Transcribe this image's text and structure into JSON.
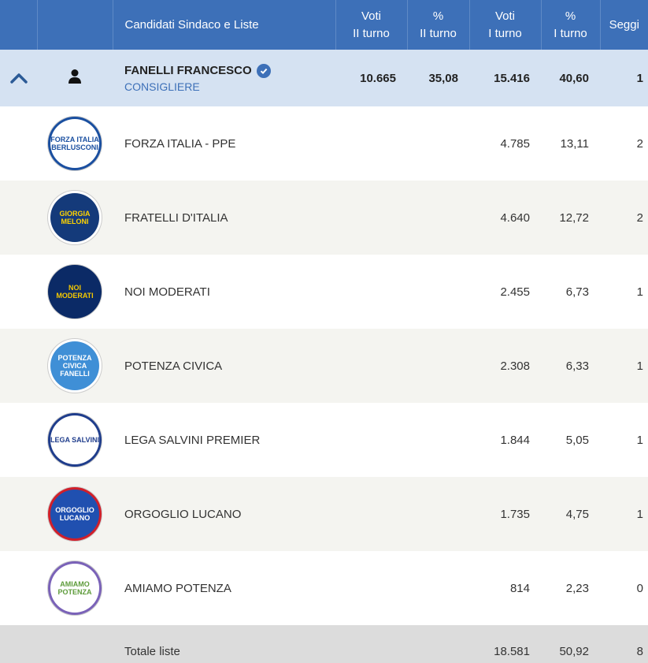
{
  "header": {
    "name_col": "Candidati Sindaco e Liste",
    "voti_ii_line1": "Voti",
    "voti_ii_line2": "II turno",
    "pct_ii_line1": "%",
    "pct_ii_line2": "II turno",
    "voti_i_line1": "Voti",
    "voti_i_line2": "I turno",
    "pct_i_line1": "%",
    "pct_i_line2": "I turno",
    "seggi": "Seggi"
  },
  "candidate": {
    "name": "FANELLI FRANCESCO",
    "role": "CONSIGLIERE",
    "voti_ii": "10.665",
    "pct_ii": "35,08",
    "voti_i": "15.416",
    "pct_i": "40,60",
    "seggi": "1"
  },
  "lists": [
    {
      "name": "FORZA ITALIA - PPE",
      "voti_i": "4.785",
      "pct_i": "13,11",
      "seggi": "2",
      "logo_text": "FORZA ITALIA BERLUSCONI",
      "logo_icon": "forza-italia-logo"
    },
    {
      "name": "FRATELLI D'ITALIA",
      "voti_i": "4.640",
      "pct_i": "12,72",
      "seggi": "2",
      "logo_text": "GIORGIA MELONI",
      "logo_icon": "fratelli-italia-logo"
    },
    {
      "name": "NOI MODERATI",
      "voti_i": "2.455",
      "pct_i": "6,73",
      "seggi": "1",
      "logo_text": "NOI MODERATI",
      "logo_icon": "noi-moderati-logo"
    },
    {
      "name": "POTENZA CIVICA",
      "voti_i": "2.308",
      "pct_i": "6,33",
      "seggi": "1",
      "logo_text": "POTENZA CIVICA FANELLI",
      "logo_icon": "potenza-civica-logo"
    },
    {
      "name": "LEGA SALVINI PREMIER",
      "voti_i": "1.844",
      "pct_i": "5,05",
      "seggi": "1",
      "logo_text": "LEGA SALVINI",
      "logo_icon": "lega-logo"
    },
    {
      "name": "ORGOGLIO LUCANO",
      "voti_i": "1.735",
      "pct_i": "4,75",
      "seggi": "1",
      "logo_text": "ORGOGLIO LUCANO",
      "logo_icon": "orgoglio-lucano-logo"
    },
    {
      "name": "AMIAMO POTENZA",
      "voti_i": "814",
      "pct_i": "2,23",
      "seggi": "0",
      "logo_text": "AMIAMO POTENZA",
      "logo_icon": "amiamo-potenza-logo"
    }
  ],
  "total": {
    "label": "Totale liste",
    "voti_i": "18.581",
    "pct_i": "50,92",
    "seggi": "8"
  },
  "colors": {
    "header_bg": "#3d70b8",
    "candidate_bg": "#d5e2f2",
    "total_bg": "#dcdcdc"
  }
}
